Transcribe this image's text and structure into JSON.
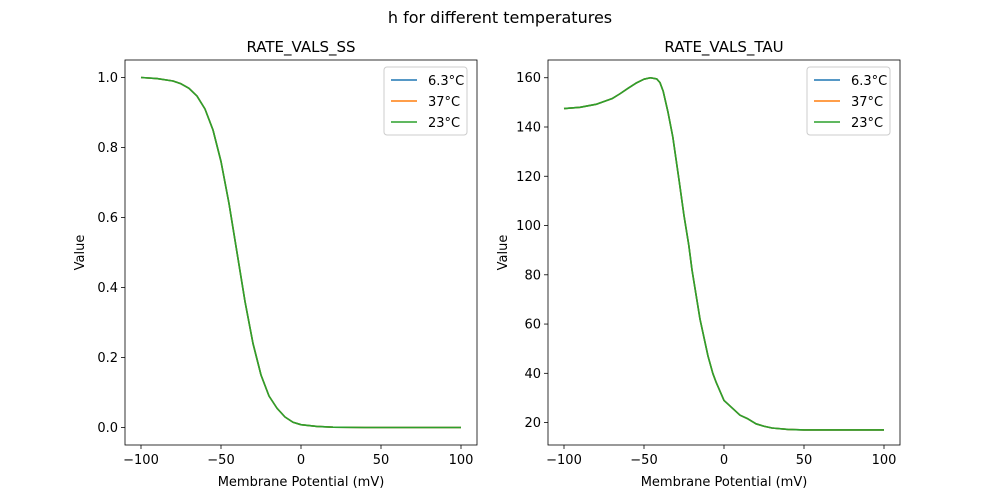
{
  "suptitle": "h for different temperatures",
  "chart_data": [
    {
      "type": "line",
      "title": "RATE_VALS_SS",
      "xlabel": "Membrane Potential (mV)",
      "ylabel": "Value",
      "xlim": [
        -110,
        110
      ],
      "ylim": [
        -0.05,
        1.05
      ],
      "xticks": [
        -100,
        -50,
        0,
        50,
        100
      ],
      "yticks": [
        0.0,
        0.2,
        0.4,
        0.6,
        0.8,
        1.0
      ],
      "ytick_decimals": 1,
      "legend": "top-right",
      "x": [
        -100,
        -90,
        -80,
        -75,
        -70,
        -65,
        -60,
        -55,
        -50,
        -45,
        -40,
        -35,
        -30,
        -25,
        -20,
        -15,
        -10,
        -5,
        0,
        10,
        20,
        40,
        60,
        80,
        100
      ],
      "series": [
        {
          "name": "6.3°C",
          "color": "#1f77b4",
          "values": [
            1.0,
            0.997,
            0.99,
            0.982,
            0.969,
            0.947,
            0.91,
            0.85,
            0.76,
            0.64,
            0.5,
            0.36,
            0.24,
            0.15,
            0.09,
            0.055,
            0.03,
            0.015,
            0.008,
            0.003,
            0.001,
            0.0,
            0.0,
            0.0,
            0.0
          ]
        },
        {
          "name": "37°C",
          "color": "#ff7f0e",
          "values": [
            1.0,
            0.997,
            0.99,
            0.982,
            0.969,
            0.947,
            0.91,
            0.85,
            0.76,
            0.64,
            0.5,
            0.36,
            0.24,
            0.15,
            0.09,
            0.055,
            0.03,
            0.015,
            0.008,
            0.003,
            0.001,
            0.0,
            0.0,
            0.0,
            0.0
          ]
        },
        {
          "name": "23°C",
          "color": "#2ca02c",
          "values": [
            1.0,
            0.997,
            0.99,
            0.982,
            0.969,
            0.947,
            0.91,
            0.85,
            0.76,
            0.64,
            0.5,
            0.36,
            0.24,
            0.15,
            0.09,
            0.055,
            0.03,
            0.015,
            0.008,
            0.003,
            0.001,
            0.0,
            0.0,
            0.0,
            0.0
          ]
        }
      ]
    },
    {
      "type": "line",
      "title": "RATE_VALS_TAU",
      "xlabel": "Membrane Potential (mV)",
      "ylabel": "Value",
      "xlim": [
        -110,
        110
      ],
      "ylim": [
        10.9,
        167.2
      ],
      "xticks": [
        -100,
        -50,
        0,
        50,
        100
      ],
      "yticks": [
        20,
        40,
        60,
        80,
        100,
        120,
        140,
        160
      ],
      "ytick_decimals": 0,
      "legend": "top-right",
      "x": [
        -100,
        -90,
        -80,
        -70,
        -65,
        -60,
        -55,
        -50,
        -46,
        -42,
        -40,
        -38,
        -35,
        -32,
        -30,
        -28,
        -25,
        -22,
        -20,
        -17,
        -15,
        -12,
        -10,
        -7,
        -5,
        -2,
        0,
        5,
        10,
        15,
        20,
        25,
        30,
        40,
        50,
        60,
        80,
        100
      ],
      "series": [
        {
          "name": "6.3°C",
          "color": "#1f77b4",
          "values": [
            147.5,
            148.0,
            149.2,
            151.5,
            153.5,
            155.7,
            157.8,
            159.4,
            160.0,
            159.5,
            158.0,
            154.5,
            146.0,
            136.0,
            127.0,
            118.0,
            104.0,
            92.0,
            82.0,
            70.0,
            62.0,
            53.0,
            47.0,
            40.0,
            36.5,
            32.0,
            29.0,
            26.0,
            23.0,
            21.5,
            19.5,
            18.5,
            17.8,
            17.2,
            17.0,
            17.0,
            17.0,
            17.0
          ]
        },
        {
          "name": "37°C",
          "color": "#ff7f0e",
          "values": [
            147.5,
            148.0,
            149.2,
            151.5,
            153.5,
            155.7,
            157.8,
            159.4,
            160.0,
            159.5,
            158.0,
            154.5,
            146.0,
            136.0,
            127.0,
            118.0,
            104.0,
            92.0,
            82.0,
            70.0,
            62.0,
            53.0,
            47.0,
            40.0,
            36.5,
            32.0,
            29.0,
            26.0,
            23.0,
            21.5,
            19.5,
            18.5,
            17.8,
            17.2,
            17.0,
            17.0,
            17.0,
            17.0
          ]
        },
        {
          "name": "23°C",
          "color": "#2ca02c",
          "values": [
            147.5,
            148.0,
            149.2,
            151.5,
            153.5,
            155.7,
            157.8,
            159.4,
            160.0,
            159.5,
            158.0,
            154.5,
            146.0,
            136.0,
            127.0,
            118.0,
            104.0,
            92.0,
            82.0,
            70.0,
            62.0,
            53.0,
            47.0,
            40.0,
            36.5,
            32.0,
            29.0,
            26.0,
            23.0,
            21.5,
            19.5,
            18.5,
            17.8,
            17.2,
            17.0,
            17.0,
            17.0,
            17.0
          ]
        }
      ]
    }
  ]
}
